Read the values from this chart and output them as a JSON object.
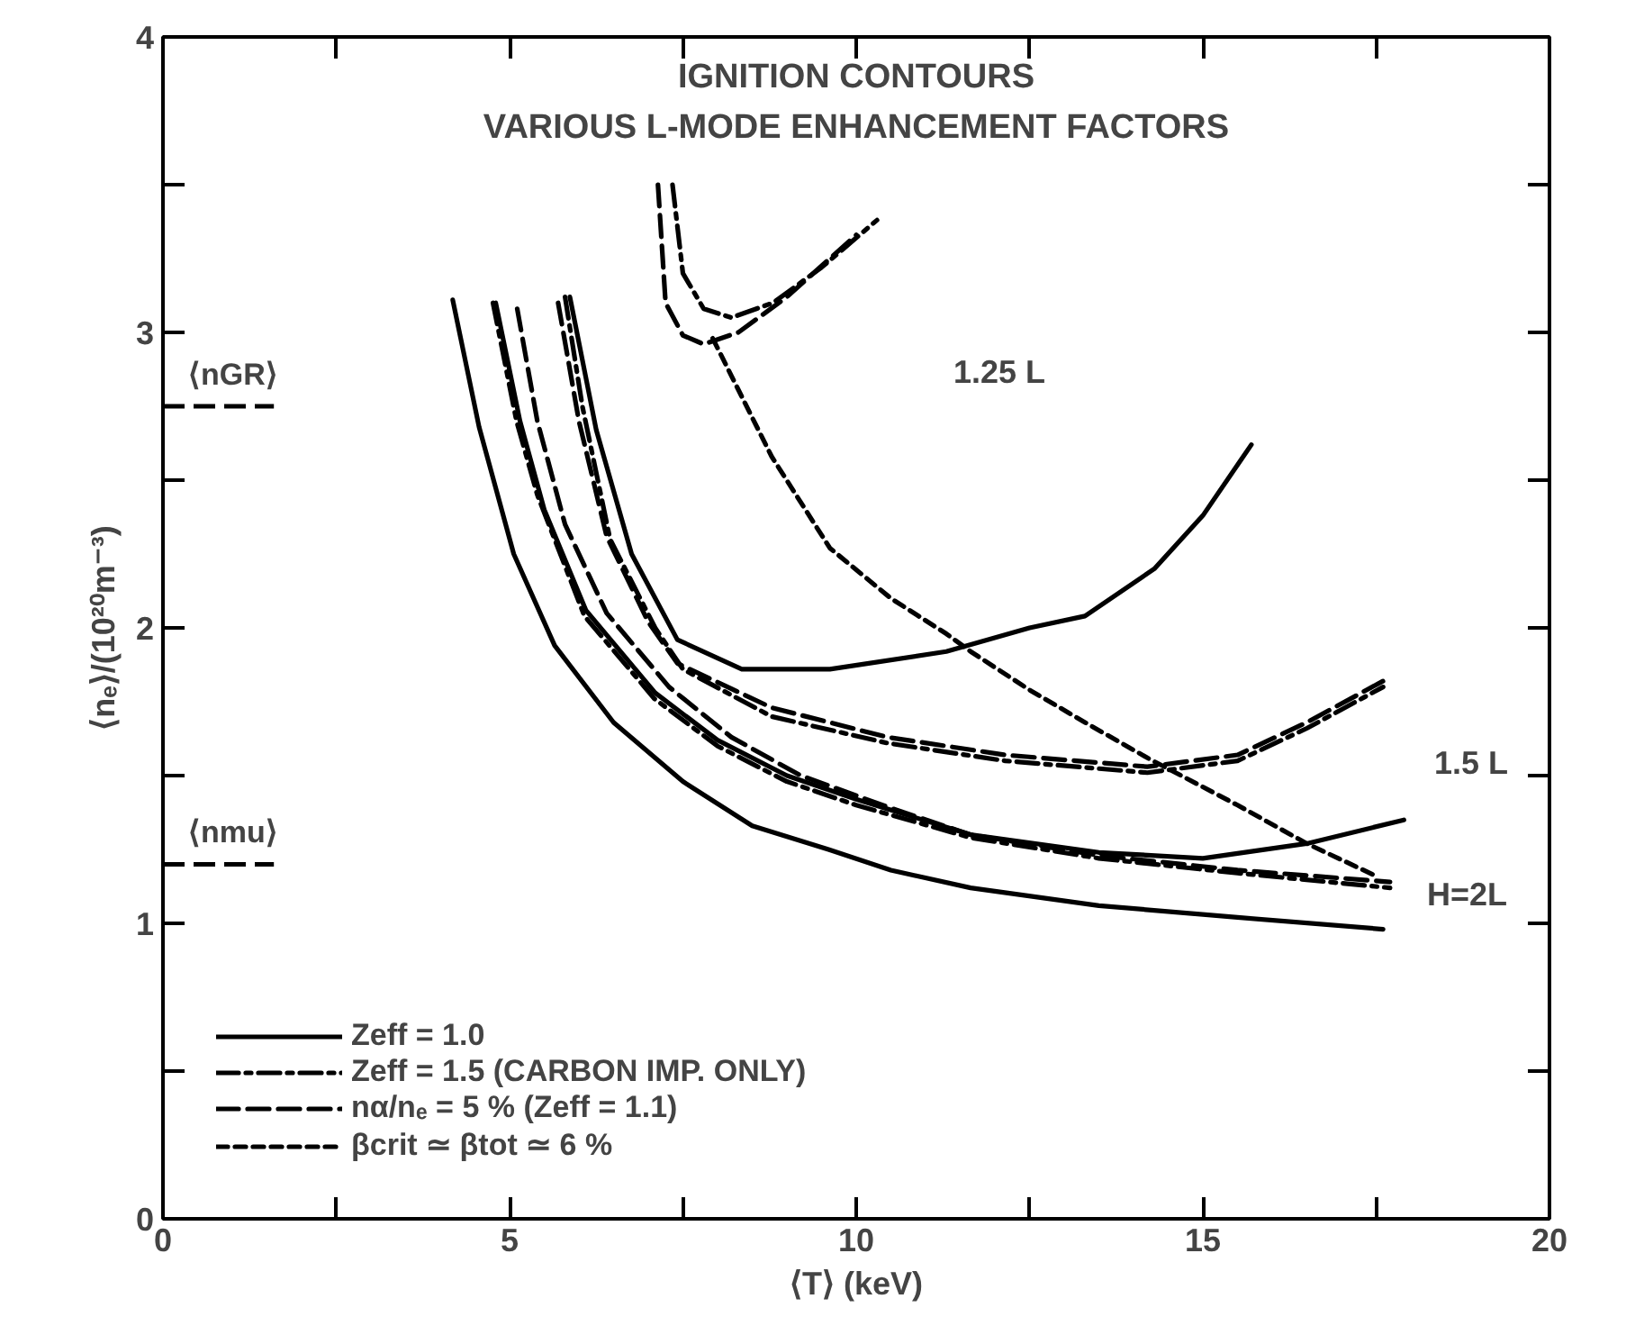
{
  "chart_data": {
    "type": "line",
    "title": "IGNITION CONTOURS",
    "subtitle": "VARIOUS L-MODE ENHANCEMENT FACTORS",
    "xlabel": "⟨T⟩ (keV)",
    "ylabel": "⟨nₑ⟩/(10²⁰m⁻³)",
    "xlim": [
      0,
      20
    ],
    "ylim": [
      0,
      4
    ],
    "xticks": [
      0,
      {
        "value": 2.5,
        "label": null
      },
      5,
      {
        "value": 7.5,
        "label": null
      },
      10,
      {
        "value": 12.5,
        "label": null
      },
      15,
      {
        "value": 17.5,
        "label": null
      },
      20
    ],
    "yticks": [
      0,
      {
        "value": 0.5,
        "label": null
      },
      1,
      {
        "value": 1.5,
        "label": null
      },
      2,
      {
        "value": 2.5,
        "label": null
      },
      3,
      {
        "value": 3.5,
        "label": null
      },
      4
    ],
    "grid": false,
    "legend": "bottom left",
    "marker": "none",
    "series": [
      {
        "name": "Zeff = 1.0",
        "color": "#000000",
        "line_style": "solid",
        "x": [
          4.18,
          4.56,
          5.06,
          5.65,
          6.5,
          7.5,
          8.5,
          9.6,
          10.5,
          11.65,
          13.5,
          15.5,
          17.6
        ],
        "values": [
          3.11,
          2.68,
          2.25,
          1.94,
          1.68,
          1.48,
          1.33,
          1.25,
          1.18,
          1.12,
          1.06,
          1.02,
          0.98
        ]
      },
      {
        "name": "Zeff = 1.5 (CARBON IMP. ONLY)",
        "color": "#000000",
        "line_style": "dashdot",
        "x": [
          4.76,
          5.1,
          5.4,
          6.08,
          7.09,
          8,
          9,
          10,
          11.65,
          13.5,
          15.5,
          17.7
        ],
        "values": [
          3.1,
          2.7,
          2.45,
          2.04,
          1.76,
          1.6,
          1.48,
          1.4,
          1.29,
          1.22,
          1.17,
          1.12
        ]
      },
      {
        "name": "nα/nₑ = 5 % (Zeff = 1.1)",
        "color": "#000000",
        "line_style": "dashed",
        "x": [
          5.11,
          5.4,
          5.8,
          6.4,
          7.3,
          8.2,
          9.2,
          10.5,
          11.65,
          13.5,
          15.5,
          17.7
        ],
        "values": [
          3.08,
          2.7,
          2.35,
          2.05,
          1.8,
          1.63,
          1.5,
          1.39,
          1.3,
          1.23,
          1.18,
          1.14
        ]
      },
      {
        "color": "#000000",
        "line_style": "solid",
        "x": [
          4.8,
          5.15,
          5.5,
          6.1,
          7.1,
          8,
          9,
          10,
          11.65,
          13.5,
          15,
          16.5,
          17.9
        ],
        "values": [
          3.1,
          2.7,
          2.4,
          2.06,
          1.78,
          1.62,
          1.5,
          1.42,
          1.3,
          1.24,
          1.22,
          1.27,
          1.35
        ]
      },
      {
        "color": "#000000",
        "line_style": "dashed",
        "x": [
          5.7,
          6.0,
          6.4,
          7,
          7.42,
          8.78,
          10.45,
          12.15,
          14.2,
          15.5,
          16.5,
          17.6
        ],
        "values": [
          3.1,
          2.7,
          2.31,
          2.02,
          1.88,
          1.73,
          1.63,
          1.57,
          1.53,
          1.57,
          1.68,
          1.82
        ]
      },
      {
        "color": "#000000",
        "line_style": "dashdot",
        "x": [
          5.8,
          6.05,
          6.45,
          7.1,
          7.5,
          8.78,
          10.45,
          12.15,
          14.2,
          15.5,
          16.5,
          17.6
        ],
        "values": [
          3.12,
          2.75,
          2.3,
          2.0,
          1.86,
          1.7,
          1.61,
          1.55,
          1.51,
          1.55,
          1.66,
          1.8
        ]
      },
      {
        "color": "#000000",
        "line_style": "solid",
        "x": [
          5.87,
          6.25,
          6.76,
          7.42,
          8.35,
          9.62,
          11.3,
          12.5,
          13.3,
          14.3,
          15,
          15.7
        ],
        "values": [
          3.12,
          2.67,
          2.25,
          1.96,
          1.86,
          1.86,
          1.92,
          2.0,
          2.04,
          2.2,
          2.38,
          2.62
        ]
      },
      {
        "color": "#000000",
        "line_style": "dashed",
        "x": [
          7.14,
          7.25,
          7.5,
          7.8,
          8.3,
          9,
          10
        ],
        "values": [
          3.5,
          3.1,
          2.99,
          2.96,
          3.0,
          3.12,
          3.33
        ]
      },
      {
        "color": "#000000",
        "line_style": "dashdot",
        "x": [
          7.35,
          7.5,
          7.8,
          8.2,
          8.8,
          9.5,
          10.3
        ],
        "values": [
          3.5,
          3.2,
          3.08,
          3.05,
          3.1,
          3.22,
          3.38
        ]
      },
      {
        "name": "βcrit ≃ βtot ≃ 6 %",
        "color": "#000000",
        "line_style": "dotted",
        "x": [
          7.93,
          8.78,
          9.62,
          10.5,
          11.3,
          11.65,
          12.5,
          13.3,
          14.2,
          15.5,
          16.5,
          17.5
        ],
        "values": [
          2.98,
          2.58,
          2.27,
          2.1,
          1.98,
          1.92,
          1.79,
          1.68,
          1.56,
          1.4,
          1.27,
          1.16
        ]
      }
    ],
    "ref_lines": [
      {
        "axis": "y",
        "value": 2.75,
        "label": "⟨nGR⟩",
        "color": "#000000",
        "line_style": "dashed"
      },
      {
        "axis": "y",
        "value": 1.2,
        "label": "⟨nmu⟩",
        "color": "#000000",
        "line_style": "dashed"
      }
    ],
    "annotations": [
      "1.25 L",
      "1.5 L",
      "H=2L"
    ]
  }
}
